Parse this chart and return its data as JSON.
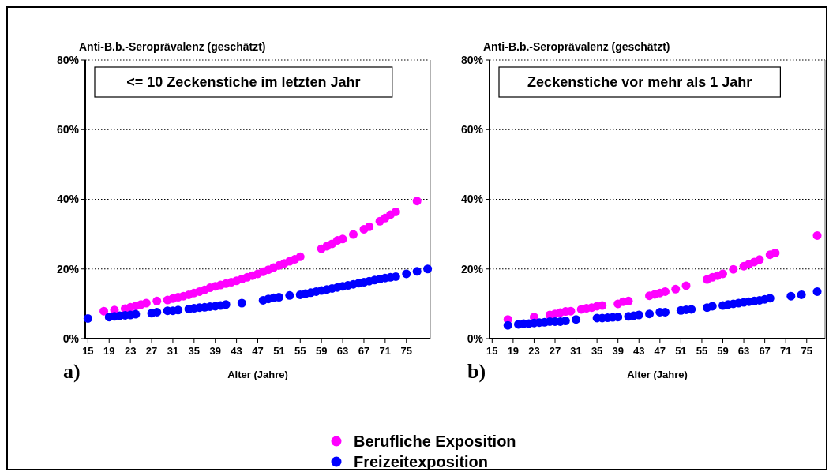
{
  "chart_data": [
    {
      "type": "scatter",
      "ylabel": "Anti-B.b.-Seroprävalenz (geschätzt)",
      "subtitle": "<= 10 Zeckenstiche im letzten Jahr",
      "xlabel": "Alter (Jahre)",
      "annotations": [
        "a)"
      ],
      "xlim": [
        14.5,
        79.5
      ],
      "xticks": [
        15,
        19,
        23,
        27,
        31,
        35,
        39,
        43,
        47,
        51,
        55,
        59,
        63,
        67,
        71,
        75
      ],
      "ylim": [
        0,
        80
      ],
      "yticks": [
        {
          "value": 0,
          "label": "0%"
        },
        {
          "value": 20,
          "label": "20%"
        },
        {
          "value": 40,
          "label": "40%"
        },
        {
          "value": 60,
          "label": "60%"
        },
        {
          "value": 80,
          "label": "80%"
        }
      ],
      "grid": "y",
      "marker": "circle",
      "legend": "bottom",
      "series": [
        {
          "name": "Berufliche Exposition",
          "color": "#ff00ff",
          "x": [
            18,
            20,
            22,
            23,
            24,
            25,
            26,
            28,
            30,
            31,
            32,
            33,
            34,
            35,
            36,
            37,
            38,
            39,
            40,
            41,
            42,
            43,
            44,
            45,
            46,
            47,
            48,
            49,
            50,
            51,
            52,
            53,
            54,
            55,
            59,
            60,
            61,
            62,
            63,
            65,
            67,
            68,
            70,
            71,
            72,
            73,
            77
          ],
          "values": [
            7.9,
            8.2,
            8.6,
            9.0,
            9.4,
            9.8,
            10.2,
            10.8,
            11.1,
            11.5,
            11.9,
            12.2,
            12.6,
            13.1,
            13.5,
            14.0,
            14.6,
            15.0,
            15.4,
            15.8,
            16.2,
            16.6,
            17.1,
            17.6,
            18.1,
            18.6,
            19.2,
            19.8,
            20.4,
            21.0,
            21.6,
            22.2,
            22.8,
            23.5,
            25.8,
            26.5,
            27.2,
            28.2,
            28.6,
            29.9,
            31.4,
            32.1,
            33.7,
            34.6,
            35.6,
            36.4,
            39.5
          ]
        },
        {
          "name": "Freizeitexposition",
          "color": "#0000ff",
          "x": [
            15,
            19,
            20,
            21,
            22,
            23,
            24,
            27,
            28,
            30,
            31,
            32,
            34,
            35,
            36,
            37,
            38,
            39,
            40,
            41,
            44,
            48,
            49,
            50,
            51,
            53,
            55,
            56,
            57,
            58,
            59,
            60,
            61,
            62,
            63,
            64,
            65,
            66,
            67,
            68,
            69,
            70,
            71,
            72,
            73,
            75,
            77,
            79
          ],
          "values": [
            5.8,
            6.2,
            6.4,
            6.6,
            6.7,
            6.8,
            7.0,
            7.3,
            7.6,
            8.0,
            8.0,
            8.2,
            8.5,
            8.7,
            8.9,
            9.0,
            9.2,
            9.3,
            9.5,
            9.8,
            10.2,
            11.0,
            11.4,
            11.7,
            11.9,
            12.4,
            12.6,
            12.9,
            13.2,
            13.5,
            13.8,
            14.1,
            14.4,
            14.7,
            15.0,
            15.3,
            15.6,
            15.9,
            16.2,
            16.5,
            16.8,
            17.1,
            17.4,
            17.6,
            17.8,
            18.6,
            19.3,
            20.0
          ]
        }
      ]
    },
    {
      "type": "scatter",
      "ylabel": "Anti-B.b.-Seroprävalenz (geschätzt)",
      "subtitle": "Zeckenstiche vor mehr als 1 Jahr",
      "xlabel": "Alter (Jahre)",
      "annotations": [
        "b)"
      ],
      "xlim": [
        14.5,
        78.5
      ],
      "xticks": [
        15,
        19,
        23,
        27,
        31,
        35,
        39,
        43,
        47,
        51,
        55,
        59,
        63,
        67,
        71,
        75
      ],
      "ylim": [
        0,
        80
      ],
      "yticks": [
        {
          "value": 0,
          "label": "0%"
        },
        {
          "value": 20,
          "label": "20%"
        },
        {
          "value": 40,
          "label": "40%"
        },
        {
          "value": 60,
          "label": "60%"
        },
        {
          "value": 80,
          "label": "80%"
        }
      ],
      "grid": "y",
      "marker": "circle",
      "series": [
        {
          "color": "#ff00ff",
          "x": [
            18,
            23,
            26,
            27,
            28,
            29,
            30,
            32,
            33,
            34,
            35,
            36,
            39,
            40,
            41,
            45,
            46,
            47,
            48,
            50,
            52,
            56,
            57,
            58,
            59,
            61,
            63,
            64,
            65,
            66,
            68,
            69,
            77
          ],
          "values": [
            5.5,
            6.2,
            6.8,
            7.1,
            7.5,
            7.8,
            7.9,
            8.4,
            8.7,
            8.9,
            9.3,
            9.5,
            10.0,
            10.6,
            10.8,
            12.3,
            12.7,
            13.1,
            13.5,
            14.2,
            15.2,
            17.0,
            17.6,
            18.1,
            18.6,
            19.9,
            20.8,
            21.4,
            22.0,
            22.7,
            24.1,
            24.6,
            29.6
          ]
        },
        {
          "color": "#0000ff",
          "x": [
            18,
            20,
            21,
            22,
            23,
            24,
            25,
            26,
            27,
            28,
            29,
            31,
            35,
            36,
            37,
            38,
            39,
            41,
            42,
            43,
            45,
            47,
            48,
            51,
            52,
            53,
            56,
            57,
            59,
            60,
            61,
            62,
            63,
            64,
            65,
            66,
            67,
            68,
            72,
            74,
            77
          ],
          "values": [
            3.8,
            4.1,
            4.3,
            4.3,
            4.5,
            4.6,
            4.7,
            4.9,
            4.9,
            4.9,
            5.1,
            5.5,
            5.9,
            5.9,
            6.0,
            6.1,
            6.2,
            6.4,
            6.6,
            6.8,
            7.1,
            7.6,
            7.6,
            8.1,
            8.3,
            8.4,
            8.9,
            9.3,
            9.5,
            9.8,
            10.0,
            10.2,
            10.4,
            10.6,
            10.8,
            11.0,
            11.3,
            11.6,
            12.2,
            12.6,
            13.5
          ]
        }
      ]
    }
  ]
}
